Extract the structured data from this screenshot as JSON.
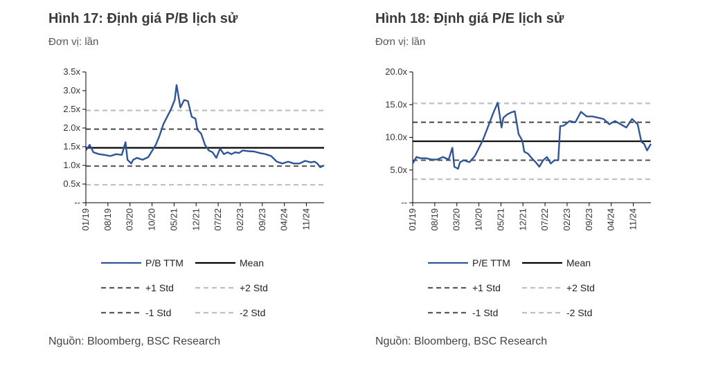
{
  "chart_data": [
    {
      "type": "line",
      "title": "Hình 17: Định giá P/B lịch sử",
      "unit": "Đơn vị: lần",
      "source": "Nguồn: Bloomberg, BSC Research",
      "y_ticks": [
        "3.5x",
        "3.0x",
        "2.5x",
        "2.0x",
        "1.5x",
        "1.0x",
        "0.5x",
        "--"
      ],
      "ylim": [
        0,
        3.5
      ],
      "x_ticks": [
        "01/19",
        "08/19",
        "03/20",
        "10/20",
        "05/21",
        "12/21",
        "07/22",
        "02/23",
        "09/23",
        "04/24",
        "11/24"
      ],
      "x_start": 2019.0,
      "x_end": 2025.3,
      "x": [
        2019.0,
        2019.1,
        2019.2,
        2019.35,
        2019.5,
        2019.65,
        2019.8,
        2019.95,
        2020.05,
        2020.1,
        2020.2,
        2020.25,
        2020.35,
        2020.5,
        2020.65,
        2020.85,
        2020.95,
        2021.05,
        2021.15,
        2021.25,
        2021.35,
        2021.4,
        2021.5,
        2021.6,
        2021.7,
        2021.8,
        2021.9,
        2021.95,
        2022.05,
        2022.15,
        2022.25,
        2022.35,
        2022.45,
        2022.55,
        2022.65,
        2022.75,
        2022.85,
        2022.95,
        2023.05,
        2023.15,
        2023.3,
        2023.45,
        2023.6,
        2023.75,
        2023.9,
        2024.05,
        2024.2,
        2024.35,
        2024.5,
        2024.65,
        2024.8,
        2024.95,
        2025.05,
        2025.12,
        2025.2,
        2025.3
      ],
      "series": [
        {
          "name": "P/B TTM",
          "color": "#2f5597",
          "values": [
            1.4,
            1.55,
            1.35,
            1.3,
            1.28,
            1.25,
            1.3,
            1.28,
            1.62,
            1.15,
            1.05,
            1.15,
            1.2,
            1.15,
            1.22,
            1.55,
            1.8,
            2.1,
            2.3,
            2.5,
            2.75,
            3.15,
            2.55,
            2.75,
            2.72,
            2.3,
            2.25,
            1.95,
            1.85,
            1.55,
            1.4,
            1.35,
            1.2,
            1.45,
            1.3,
            1.35,
            1.3,
            1.35,
            1.33,
            1.4,
            1.38,
            1.37,
            1.33,
            1.3,
            1.25,
            1.1,
            1.05,
            1.1,
            1.05,
            1.05,
            1.12,
            1.08,
            1.1,
            1.05,
            0.95,
            1.0
          ]
        }
      ],
      "reference_lines": [
        {
          "name": "Mean",
          "value": 1.47,
          "color": "#000000",
          "style": "solid"
        },
        {
          "name": "+1 Std",
          "value": 1.97,
          "color": "#595959",
          "style": "dashed"
        },
        {
          "name": "+2 Std",
          "value": 2.47,
          "color": "#bfbfbf",
          "style": "dashed"
        },
        {
          "name": "-1 Std",
          "value": 0.98,
          "color": "#595959",
          "style": "dashed"
        },
        {
          "name": "-2 Std",
          "value": 0.48,
          "color": "#bfbfbf",
          "style": "dashed"
        }
      ],
      "legend": [
        "P/B TTM",
        "Mean",
        "+1 Std",
        "+2 Std",
        "-1 Std",
        "-2 Std"
      ]
    },
    {
      "type": "line",
      "title": "Hình 18: Định giá P/E lịch sử",
      "unit": "Đơn vị: lần",
      "source": "Nguồn: Bloomberg, BSC Research",
      "y_ticks": [
        "20.0x",
        "15.0x",
        "10.0x",
        "5.0x",
        "--"
      ],
      "ylim": [
        0,
        20
      ],
      "x_ticks": [
        "01/19",
        "08/19",
        "03/20",
        "10/20",
        "05/21",
        "12/21",
        "07/22",
        "02/23",
        "09/23",
        "04/24",
        "11/24"
      ],
      "x_start": 2019.0,
      "x_end": 2025.3,
      "x": [
        2019.0,
        2019.1,
        2019.2,
        2019.35,
        2019.5,
        2019.65,
        2019.8,
        2019.95,
        2020.05,
        2020.1,
        2020.2,
        2020.25,
        2020.35,
        2020.5,
        2020.65,
        2020.85,
        2020.95,
        2021.05,
        2021.15,
        2021.25,
        2021.35,
        2021.4,
        2021.5,
        2021.6,
        2021.7,
        2021.8,
        2021.9,
        2021.95,
        2022.05,
        2022.15,
        2022.25,
        2022.35,
        2022.45,
        2022.55,
        2022.65,
        2022.75,
        2022.85,
        2022.9,
        2023.0,
        2023.15,
        2023.3,
        2023.45,
        2023.6,
        2023.75,
        2023.9,
        2024.05,
        2024.2,
        2024.35,
        2024.5,
        2024.65,
        2024.8,
        2024.95,
        2025.05,
        2025.12,
        2025.2,
        2025.3
      ],
      "series": [
        {
          "name": "P/E TTM",
          "color": "#2f5597",
          "values": [
            6.0,
            7.0,
            6.8,
            6.8,
            6.6,
            6.6,
            7.0,
            6.6,
            8.4,
            5.5,
            5.2,
            6.2,
            6.5,
            6.2,
            7.2,
            9.5,
            11.0,
            12.5,
            14.0,
            15.3,
            11.5,
            13.0,
            13.5,
            13.8,
            14.0,
            10.5,
            9.5,
            7.8,
            7.5,
            6.8,
            6.2,
            5.5,
            6.5,
            7.0,
            6.0,
            6.5,
            6.5,
            11.7,
            11.8,
            12.5,
            12.3,
            13.9,
            13.2,
            13.2,
            13.0,
            12.8,
            12.0,
            12.5,
            12.0,
            11.5,
            12.8,
            12.0,
            9.3,
            9.0,
            8.0,
            9.0
          ]
        }
      ],
      "reference_lines": [
        {
          "name": "Mean",
          "value": 9.4,
          "color": "#000000",
          "style": "solid"
        },
        {
          "name": "+1 Std",
          "value": 12.3,
          "color": "#595959",
          "style": "dashed"
        },
        {
          "name": "+2 Std",
          "value": 15.2,
          "color": "#bfbfbf",
          "style": "dashed"
        },
        {
          "name": "-1 Std",
          "value": 6.5,
          "color": "#595959",
          "style": "dashed"
        },
        {
          "name": "-2 Std",
          "value": 3.6,
          "color": "#bfbfbf",
          "style": "dashed"
        }
      ],
      "legend": [
        "P/E TTM",
        "Mean",
        "+1 Std",
        "+2 Std",
        "-1 Std",
        "-2 Std"
      ]
    }
  ]
}
